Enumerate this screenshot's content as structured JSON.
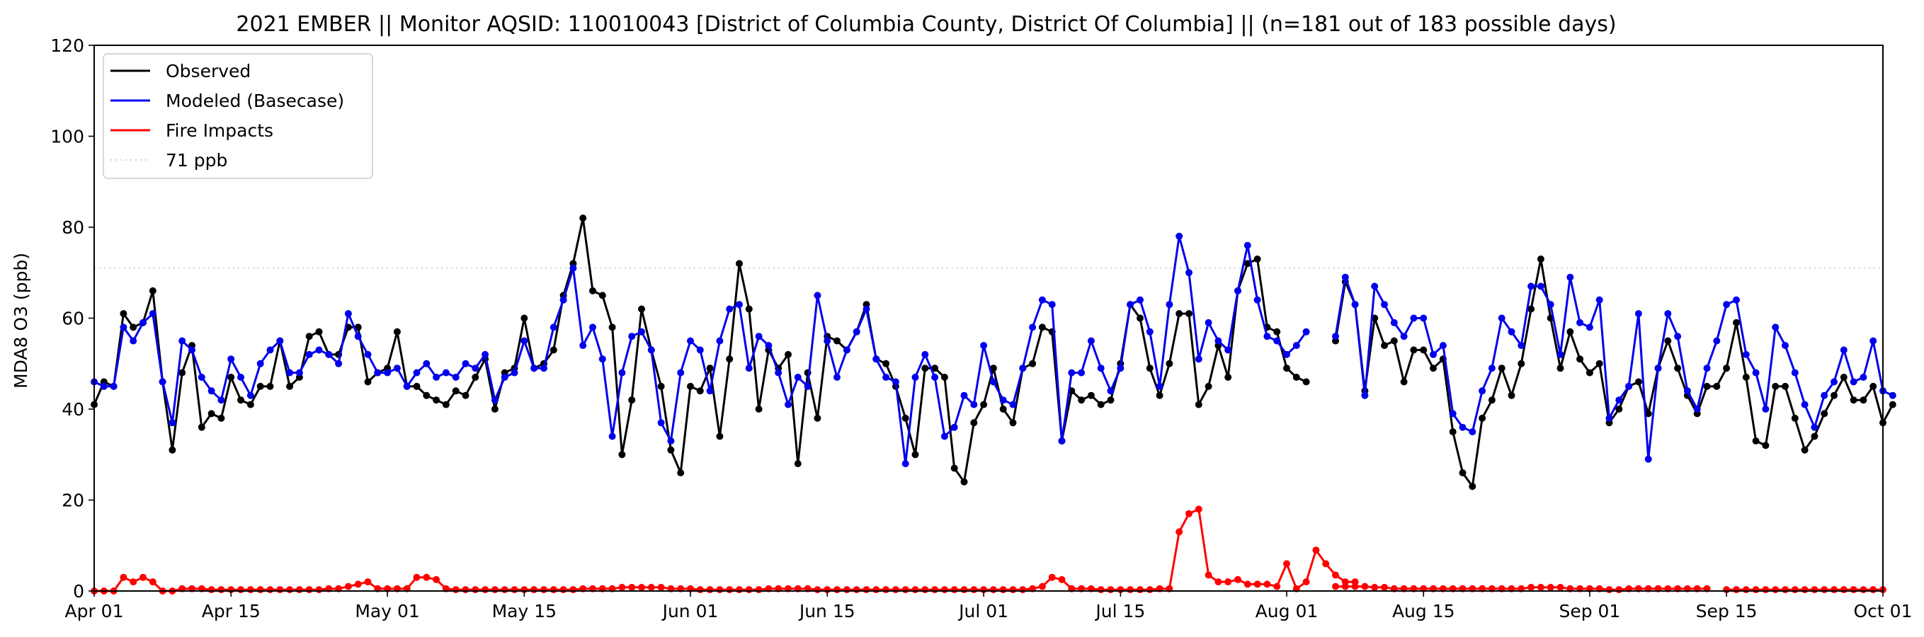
{
  "chart_data": {
    "type": "line",
    "title": "2021 EMBER || Monitor AQSID: 110010043 [District of Columbia County, District Of Columbia] || (n=181 out of 183 possible days)",
    "xlabel": "",
    "ylabel": "MDA8 O3 (ppb)",
    "xlim": [
      "2021-04-01",
      "2021-10-01"
    ],
    "ylim": [
      0,
      120
    ],
    "yticks": [
      0,
      20,
      40,
      60,
      80,
      100,
      120
    ],
    "xticks": [
      {
        "date": "2021-04-01",
        "label": "Apr 01"
      },
      {
        "date": "2021-04-15",
        "label": "Apr 15"
      },
      {
        "date": "2021-05-01",
        "label": "May 01"
      },
      {
        "date": "2021-05-15",
        "label": "May 15"
      },
      {
        "date": "2021-06-01",
        "label": "Jun 01"
      },
      {
        "date": "2021-06-15",
        "label": "Jun 15"
      },
      {
        "date": "2021-07-01",
        "label": "Jul 01"
      },
      {
        "date": "2021-07-15",
        "label": "Jul 15"
      },
      {
        "date": "2021-08-01",
        "label": "Aug 01"
      },
      {
        "date": "2021-08-15",
        "label": "Aug 15"
      },
      {
        "date": "2021-09-01",
        "label": "Sep 01"
      },
      {
        "date": "2021-09-15",
        "label": "Sep 15"
      },
      {
        "date": "2021-10-01",
        "label": "Oct 01"
      }
    ],
    "grid": false,
    "legend_position": "top-left",
    "reference_line": {
      "label": "71 ppb",
      "value": 71,
      "color": "#d3d3d3",
      "style": "dotted"
    },
    "start_date": "2021-04-01",
    "series": [
      {
        "name": "Observed",
        "color": "#000000",
        "segments": [
          {
            "start": "2021-04-01",
            "values": [
              41,
              46,
              45,
              61,
              58,
              59,
              66,
              46,
              31,
              48,
              54,
              36,
              39,
              38,
              47,
              42,
              41,
              45,
              45,
              55,
              45,
              47,
              56,
              57,
              52,
              52,
              58,
              58,
              46,
              48,
              49,
              57,
              45,
              45,
              43,
              42,
              41,
              44,
              43,
              47,
              51,
              40,
              48,
              49,
              60,
              49,
              50,
              53,
              65,
              72,
              82,
              66,
              65,
              58,
              30,
              42,
              62,
              53,
              45,
              31,
              26,
              45,
              44,
              49,
              34,
              51,
              72,
              62,
              40,
              53,
              49,
              52,
              28,
              48,
              38,
              56,
              55,
              53,
              57,
              63,
              51,
              50,
              45,
              38,
              30,
              49,
              49,
              47,
              27,
              24,
              37,
              41,
              49,
              40,
              37,
              49,
              50,
              58,
              57,
              33,
              44,
              42,
              43,
              41,
              42,
              50,
              63,
              60,
              49,
              43,
              50,
              61,
              61,
              41,
              45,
              54,
              47,
              66,
              72,
              73,
              58,
              57,
              49,
              47,
              46
            ]
          },
          {
            "start": "2021-08-06",
            "values": [
              55,
              68,
              63,
              44,
              60,
              54,
              55,
              46,
              53,
              53,
              49,
              51,
              35,
              26,
              23,
              38,
              42,
              49,
              43,
              50,
              62,
              73,
              60,
              49,
              57,
              51,
              48,
              50,
              37,
              40,
              45,
              46,
              39,
              49,
              55,
              49,
              43,
              39,
              45,
              45,
              49,
              59,
              47,
              33,
              32,
              45,
              45,
              38,
              31,
              34,
              39,
              43,
              47,
              42,
              42,
              45,
              37,
              41
            ]
          }
        ]
      },
      {
        "name": "Modeled (Basecase)",
        "color": "#0000ee",
        "segments": [
          {
            "start": "2021-04-01",
            "values": [
              46,
              45,
              45,
              58,
              55,
              59,
              61,
              46,
              37,
              55,
              53,
              47,
              44,
              42,
              51,
              47,
              43,
              50,
              53,
              55,
              48,
              48,
              52,
              53,
              52,
              50,
              61,
              56,
              52,
              48,
              48,
              49,
              45,
              48,
              50,
              47,
              48,
              47,
              50,
              49,
              52,
              42,
              47,
              48,
              55,
              49,
              49,
              58,
              64,
              71,
              54,
              58,
              51,
              34,
              48,
              56,
              57,
              53,
              37,
              33,
              48,
              55,
              53,
              44,
              55,
              62,
              63,
              49,
              56,
              54,
              48,
              41,
              47,
              45,
              65,
              55,
              47,
              53,
              57,
              62,
              51,
              47,
              46,
              28,
              47,
              52,
              47,
              34,
              36,
              43,
              41,
              54,
              46,
              42,
              41,
              49,
              58,
              64,
              63,
              33,
              48,
              48,
              55,
              49,
              44,
              49,
              63,
              64,
              57,
              45,
              63,
              78,
              70,
              51,
              59,
              55,
              53,
              66,
              76,
              64,
              56,
              55,
              52,
              54,
              57
            ]
          },
          {
            "start": "2021-08-06",
            "values": [
              56,
              69,
              63,
              43,
              67,
              63,
              59,
              56,
              60,
              60,
              52,
              54,
              39,
              36,
              35,
              44,
              49,
              60,
              57,
              54,
              67,
              67,
              63,
              52,
              69,
              59,
              58,
              64,
              38,
              42,
              45,
              61,
              29,
              49,
              61,
              56,
              44,
              40,
              49,
              55,
              63,
              64,
              52,
              48,
              40,
              58,
              54,
              48,
              41,
              36,
              43,
              46,
              53,
              46,
              47,
              55,
              44,
              43
            ]
          }
        ]
      },
      {
        "name": "Fire Impacts",
        "color": "#ff0000",
        "segments": [
          {
            "start": "2021-04-01",
            "values": [
              0,
              0,
              0,
              3,
              2,
              3,
              2,
              0,
              0,
              0.5,
              0.5,
              0.5,
              0.3,
              0.3,
              0.3,
              0.3,
              0.3,
              0.3,
              0.3,
              0.3,
              0.3,
              0.3,
              0.3,
              0.3,
              0.5,
              0.5,
              1,
              1.5,
              2,
              0.5,
              0.5,
              0.5,
              0.5,
              3,
              3,
              2.5,
              0.5,
              0.3,
              0.3,
              0.3,
              0.3,
              0.3,
              0.3,
              0.3,
              0.3,
              0.3,
              0.3,
              0.3,
              0.3,
              0.3,
              0.5,
              0.5,
              0.5,
              0.5,
              0.8,
              0.8,
              0.8,
              0.8,
              0.8,
              0.5,
              0.5,
              0.5,
              0.3,
              0.3,
              0.3,
              0.3,
              0.3,
              0.3,
              0.3,
              0.5,
              0.5,
              0.5,
              0.5,
              0.5,
              0.3,
              0.3,
              0.3,
              0.3,
              0.3,
              0.3,
              0.3,
              0.3,
              0.3,
              0.3,
              0.3,
              0.3,
              0.3,
              0.3,
              0.3,
              0.3,
              0.3,
              0.3,
              0.3,
              0.3,
              0.3,
              0.3,
              0.5,
              1,
              3,
              2.5,
              0.5,
              0.5,
              0.5,
              0.3,
              0.3,
              0.3,
              0.3,
              0.3,
              0.3,
              0.5,
              0.5,
              13,
              17,
              18,
              3.5,
              2,
              2,
              2.5,
              1.5,
              1.5,
              1.5,
              1,
              6,
              0.5,
              2,
              9,
              6,
              3.5,
              2,
              2
            ]
          },
          {
            "start": "2021-08-06",
            "values": [
              1,
              1,
              1,
              1,
              0.8,
              0.8,
              0.5,
              0.5,
              0.5,
              0.5,
              0.5,
              0.5,
              0.5,
              0.5,
              0.5,
              0.5,
              0.5,
              0.5,
              0.5,
              0.5,
              0.8,
              0.8,
              0.8,
              0.8,
              0.5,
              0.5,
              0.5,
              0.5,
              0.3,
              0.3,
              0.5,
              0.5,
              0.5,
              0.5,
              0.5,
              0.5,
              0.5,
              0.5,
              0.5
            ]
          },
          {
            "start": "2021-09-15",
            "values": [
              0.3,
              0.3,
              0.3,
              0.3,
              0.3,
              0.3,
              0.3,
              0.3,
              0.3,
              0.3,
              0.3,
              0.3,
              0.3,
              0.3,
              0.3,
              0.3,
              0.3
            ]
          }
        ]
      }
    ]
  }
}
